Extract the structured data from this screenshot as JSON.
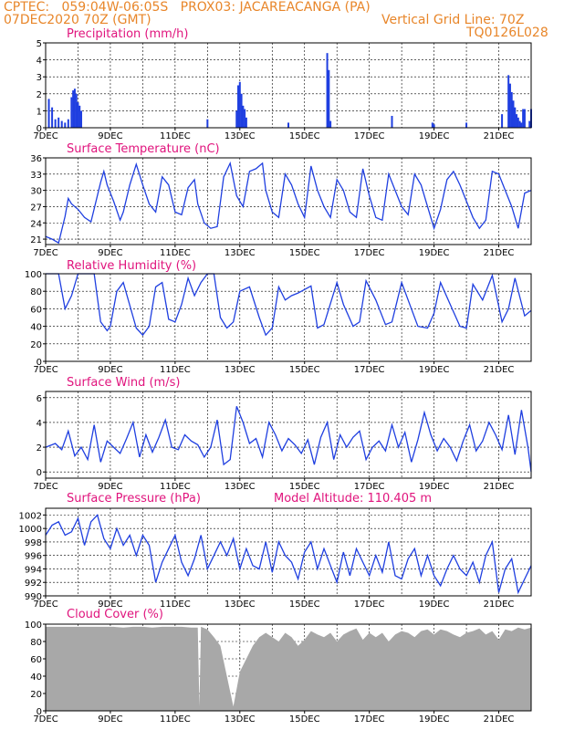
{
  "header": {
    "left_line1": "CPTEC:   059:04W-06:05S   PROX03: JACAREACANGA (PA)",
    "left_line2": "07DEC2020 70Z (GMT)",
    "right_line2": "Vertical Grid Line: 70Z",
    "right_line3": "TQ0126L028"
  },
  "colors": {
    "header": "#e8862a",
    "panel_title": "#e0147d",
    "series": "#1f3fe0",
    "cloud": "#a8a8a8"
  },
  "chart_data": [
    {
      "type": "bar",
      "title": "Precipitation (mm/h)",
      "ylim": [
        0,
        5
      ],
      "yticks": [
        0,
        1,
        2,
        3,
        4,
        5
      ],
      "xticks": [
        "7DEC",
        "9DEC",
        "11DEC",
        "13DEC",
        "15DEC",
        "17DEC",
        "19DEC",
        "21DEC"
      ],
      "x_days": [
        0,
        15
      ],
      "x": [
        0.1,
        0.2,
        0.3,
        0.4,
        0.5,
        0.6,
        0.7,
        0.8,
        0.85,
        0.9,
        0.95,
        1.0,
        1.05,
        1.1,
        5.0,
        5.9,
        5.95,
        6.0,
        6.05,
        6.1,
        6.15,
        6.2,
        7.5,
        8.7,
        8.75,
        8.8,
        10.7,
        11.95,
        12.0,
        13.0,
        14.1,
        14.3,
        14.35,
        14.4,
        14.45,
        14.5,
        14.55,
        14.6,
        14.65,
        14.7,
        14.75,
        14.8,
        14.95,
        15.0
      ],
      "values": [
        1.7,
        1.2,
        0.5,
        0.6,
        0.4,
        0.3,
        0.5,
        1.8,
        2.2,
        2.3,
        2.0,
        1.5,
        1.3,
        1.0,
        0.5,
        1.0,
        2.5,
        2.7,
        2.0,
        1.3,
        1.1,
        0.6,
        0.3,
        4.4,
        3.4,
        0.4,
        0.7,
        0.3,
        0.2,
        0.3,
        0.8,
        3.1,
        2.6,
        2.1,
        1.6,
        1.2,
        0.8,
        0.6,
        0.4,
        0.3,
        1.1,
        1.1,
        0.4,
        1.1
      ]
    },
    {
      "type": "line",
      "title": "Surface Temperature (nC)",
      "ylim": [
        20,
        36
      ],
      "yticks": [
        21,
        24,
        27,
        30,
        33,
        36
      ],
      "xticks": [
        "7DEC",
        "9DEC",
        "11DEC",
        "13DEC",
        "15DEC",
        "17DEC",
        "19DEC",
        "21DEC"
      ],
      "x_days": [
        0,
        15
      ],
      "x": [
        0.0,
        0.2,
        0.4,
        0.6,
        0.7,
        0.8,
        1.0,
        1.2,
        1.4,
        1.7,
        1.8,
        1.9,
        2.1,
        2.3,
        2.4,
        2.6,
        2.8,
        3.0,
        3.2,
        3.4,
        3.6,
        3.8,
        4.0,
        4.2,
        4.4,
        4.6,
        4.7,
        4.9,
        5.1,
        5.3,
        5.5,
        5.7,
        5.9,
        6.1,
        6.3,
        6.5,
        6.7,
        6.8,
        7.0,
        7.2,
        7.4,
        7.6,
        7.8,
        8.0,
        8.2,
        8.4,
        8.6,
        8.8,
        9.0,
        9.2,
        9.4,
        9.6,
        9.8,
        10.0,
        10.2,
        10.4,
        10.6,
        10.8,
        11.0,
        11.2,
        11.4,
        11.6,
        11.8,
        12.0,
        12.2,
        12.4,
        12.6,
        12.8,
        13.0,
        13.2,
        13.4,
        13.6,
        13.8,
        14.0,
        14.2,
        14.4,
        14.6,
        14.8,
        15.0
      ],
      "values": [
        21.5,
        21.0,
        20.3,
        25.2,
        28.5,
        27.5,
        26.5,
        25.0,
        24.2,
        31.5,
        33.5,
        31.0,
        28.0,
        24.5,
        26.0,
        31.0,
        34.8,
        31.0,
        27.5,
        26.0,
        32.5,
        31.0,
        26.0,
        25.5,
        30.5,
        32.0,
        27.5,
        24.0,
        23.0,
        23.3,
        32.5,
        35.0,
        29.0,
        27.0,
        33.5,
        34.0,
        35.0,
        30.0,
        26.0,
        25.0,
        33.0,
        31.0,
        27.5,
        25.0,
        34.5,
        30.0,
        27.0,
        25.0,
        32.0,
        30.0,
        26.0,
        25.0,
        34.0,
        29.0,
        25.0,
        24.5,
        33.0,
        30.0,
        27.0,
        25.5,
        33.0,
        31.0,
        27.0,
        23.0,
        26.5,
        32.0,
        33.5,
        31.0,
        28.0,
        25.0,
        23.0,
        24.5,
        33.5,
        33.0,
        30.0,
        27.0,
        23.0,
        29.5,
        30.0
      ]
    },
    {
      "type": "line",
      "title": "Relative Humidity (%)",
      "ylim": [
        0,
        100
      ],
      "yticks": [
        0,
        20,
        40,
        60,
        80,
        100
      ],
      "xticks": [
        "7DEC",
        "9DEC",
        "11DEC",
        "13DEC",
        "15DEC",
        "17DEC",
        "19DEC",
        "21DEC"
      ],
      "x_days": [
        0,
        15
      ],
      "x": [
        0.0,
        0.4,
        0.6,
        0.8,
        1.0,
        1.5,
        1.7,
        1.9,
        2.0,
        2.2,
        2.4,
        2.8,
        3.0,
        3.2,
        3.4,
        3.6,
        3.8,
        4.0,
        4.2,
        4.4,
        4.6,
        4.8,
        5.0,
        5.2,
        5.4,
        5.6,
        5.8,
        6.0,
        6.3,
        6.6,
        6.8,
        7.0,
        7.2,
        7.4,
        7.6,
        7.8,
        8.0,
        8.2,
        8.4,
        8.6,
        9.0,
        9.2,
        9.5,
        9.7,
        9.9,
        10.2,
        10.5,
        10.7,
        11.0,
        11.2,
        11.5,
        11.8,
        12.0,
        12.2,
        12.5,
        12.8,
        13.0,
        13.2,
        13.5,
        13.8,
        14.1,
        14.3,
        14.5,
        14.8,
        15.0
      ],
      "values": [
        100,
        100,
        60,
        75,
        100,
        100,
        45,
        35,
        40,
        80,
        90,
        38,
        30,
        40,
        85,
        90,
        48,
        45,
        65,
        95,
        75,
        90,
        100,
        100,
        50,
        38,
        45,
        80,
        85,
        50,
        30,
        38,
        85,
        70,
        75,
        78,
        82,
        86,
        38,
        42,
        90,
        65,
        40,
        45,
        92,
        70,
        42,
        45,
        90,
        70,
        40,
        38,
        55,
        90,
        65,
        40,
        38,
        88,
        70,
        98,
        45,
        60,
        95,
        52,
        58
      ]
    },
    {
      "type": "line",
      "title": "Surface Wind (m/s)",
      "ylim": [
        -0.5,
        6.5
      ],
      "yticks": [
        0,
        2,
        4,
        6
      ],
      "xticks": [
        "7DEC",
        "9DEC",
        "11DEC",
        "13DEC",
        "15DEC",
        "17DEC",
        "19DEC",
        "21DEC"
      ],
      "x_days": [
        0,
        15
      ],
      "x": [
        0.0,
        0.3,
        0.5,
        0.7,
        0.9,
        1.1,
        1.3,
        1.5,
        1.7,
        1.9,
        2.1,
        2.3,
        2.5,
        2.7,
        2.9,
        3.1,
        3.3,
        3.5,
        3.7,
        3.9,
        4.1,
        4.3,
        4.5,
        4.7,
        4.9,
        5.1,
        5.3,
        5.5,
        5.7,
        5.9,
        6.1,
        6.3,
        6.5,
        6.7,
        6.9,
        7.1,
        7.3,
        7.5,
        7.7,
        7.9,
        8.1,
        8.3,
        8.5,
        8.7,
        8.9,
        9.1,
        9.3,
        9.5,
        9.7,
        9.9,
        10.1,
        10.3,
        10.5,
        10.7,
        10.9,
        11.1,
        11.3,
        11.5,
        11.7,
        11.9,
        12.1,
        12.3,
        12.5,
        12.7,
        12.9,
        13.1,
        13.3,
        13.5,
        13.7,
        13.9,
        14.1,
        14.3,
        14.5,
        14.7,
        14.9,
        15.0
      ],
      "values": [
        2.0,
        2.3,
        1.8,
        3.3,
        1.3,
        2.0,
        1.0,
        3.8,
        0.8,
        2.5,
        2.0,
        1.5,
        2.7,
        4.0,
        1.2,
        3.0,
        1.6,
        2.8,
        4.2,
        2.0,
        1.8,
        3.0,
        2.5,
        2.2,
        1.2,
        2.0,
        4.2,
        0.6,
        1.0,
        5.3,
        4.0,
        2.3,
        2.7,
        1.2,
        4.0,
        3.0,
        1.7,
        2.7,
        2.2,
        1.5,
        2.6,
        0.6,
        2.8,
        4.0,
        1.0,
        3.0,
        2.0,
        2.8,
        3.3,
        1.0,
        2.0,
        2.5,
        1.7,
        3.8,
        2.0,
        3.2,
        0.8,
        2.6,
        4.8,
        3.0,
        1.7,
        2.7,
        2.0,
        0.9,
        2.5,
        3.8,
        1.7,
        2.5,
        4.0,
        3.0,
        1.8,
        4.6,
        1.4,
        5.0,
        2.0,
        0.0
      ]
    },
    {
      "type": "line",
      "title": "Surface Pressure (hPa)",
      "subtitle": "Model Altitude: 110.405 m",
      "ylim": [
        990,
        1003
      ],
      "yticks": [
        990,
        992,
        994,
        996,
        998,
        1000,
        1002
      ],
      "xticks": [
        "7DEC",
        "9DEC",
        "11DEC",
        "13DEC",
        "15DEC",
        "17DEC",
        "19DEC",
        "21DEC"
      ],
      "x_days": [
        0,
        15
      ],
      "x": [
        0.0,
        0.2,
        0.4,
        0.6,
        0.8,
        1.0,
        1.2,
        1.4,
        1.6,
        1.8,
        2.0,
        2.2,
        2.4,
        2.6,
        2.8,
        3.0,
        3.2,
        3.4,
        3.6,
        3.8,
        4.0,
        4.2,
        4.4,
        4.6,
        4.8,
        5.0,
        5.2,
        5.4,
        5.6,
        5.8,
        6.0,
        6.2,
        6.4,
        6.6,
        6.8,
        7.0,
        7.2,
        7.4,
        7.6,
        7.8,
        8.0,
        8.2,
        8.4,
        8.6,
        8.8,
        9.0,
        9.2,
        9.4,
        9.6,
        9.8,
        10.0,
        10.2,
        10.4,
        10.6,
        10.8,
        11.0,
        11.2,
        11.4,
        11.6,
        11.8,
        12.0,
        12.2,
        12.4,
        12.6,
        12.8,
        13.0,
        13.2,
        13.4,
        13.6,
        13.8,
        14.0,
        14.2,
        14.4,
        14.6,
        14.8,
        15.0
      ],
      "values": [
        999,
        1000.5,
        1001,
        999,
        999.5,
        1001.5,
        997.5,
        1001,
        1002,
        998.5,
        997,
        1000,
        997.5,
        999,
        996,
        999,
        997.5,
        992,
        995,
        997,
        999,
        995,
        993,
        995.5,
        999,
        994,
        996,
        998,
        996,
        998.5,
        994,
        997,
        994.5,
        994,
        998,
        993.5,
        998,
        996,
        995,
        992.5,
        996.5,
        998,
        994,
        997,
        994.5,
        992,
        996.5,
        993,
        997,
        995,
        993,
        996,
        993.5,
        998,
        993,
        992.5,
        995.5,
        997,
        993,
        996,
        993,
        991.5,
        994,
        996,
        994,
        993,
        995,
        992,
        996,
        998,
        990.5,
        994,
        995.5,
        990.5,
        992.5,
        994.5
      ]
    },
    {
      "type": "area",
      "title": "Cloud Cover (%)",
      "ylim": [
        0,
        100
      ],
      "yticks": [
        0,
        20,
        40,
        60,
        80,
        100
      ],
      "xticks": [
        "7DEC",
        "9DEC",
        "11DEC",
        "13DEC",
        "15DEC",
        "17DEC",
        "19DEC",
        "21DEC"
      ],
      "x_days": [
        0,
        15
      ],
      "x": [
        0.0,
        0.3,
        0.6,
        0.9,
        1.2,
        1.5,
        1.8,
        2.1,
        2.4,
        2.7,
        3.0,
        3.3,
        3.6,
        3.9,
        4.2,
        4.5,
        4.7,
        4.75,
        4.8,
        5.0,
        5.2,
        5.4,
        5.6,
        5.8,
        6.0,
        6.2,
        6.4,
        6.6,
        6.8,
        7.0,
        7.2,
        7.4,
        7.6,
        7.8,
        8.0,
        8.2,
        8.4,
        8.6,
        8.8,
        9.0,
        9.2,
        9.4,
        9.6,
        9.8,
        10.0,
        10.2,
        10.4,
        10.6,
        10.8,
        11.0,
        11.2,
        11.4,
        11.6,
        11.8,
        12.0,
        12.2,
        12.4,
        12.6,
        12.8,
        13.0,
        13.2,
        13.4,
        13.6,
        13.8,
        14.0,
        14.2,
        14.4,
        14.6,
        14.8,
        15.0
      ],
      "values": [
        97,
        97,
        97,
        97,
        97,
        97,
        97,
        97,
        96,
        97,
        97,
        96,
        97,
        97,
        97,
        96,
        96,
        5,
        97,
        94,
        85,
        75,
        40,
        5,
        45,
        60,
        75,
        85,
        90,
        85,
        80,
        90,
        85,
        75,
        82,
        92,
        88,
        85,
        90,
        80,
        88,
        92,
        95,
        82,
        90,
        85,
        90,
        80,
        88,
        92,
        90,
        85,
        92,
        94,
        88,
        94,
        92,
        88,
        85,
        90,
        92,
        95,
        88,
        92,
        82,
        94,
        92,
        96,
        94,
        96
      ]
    }
  ]
}
